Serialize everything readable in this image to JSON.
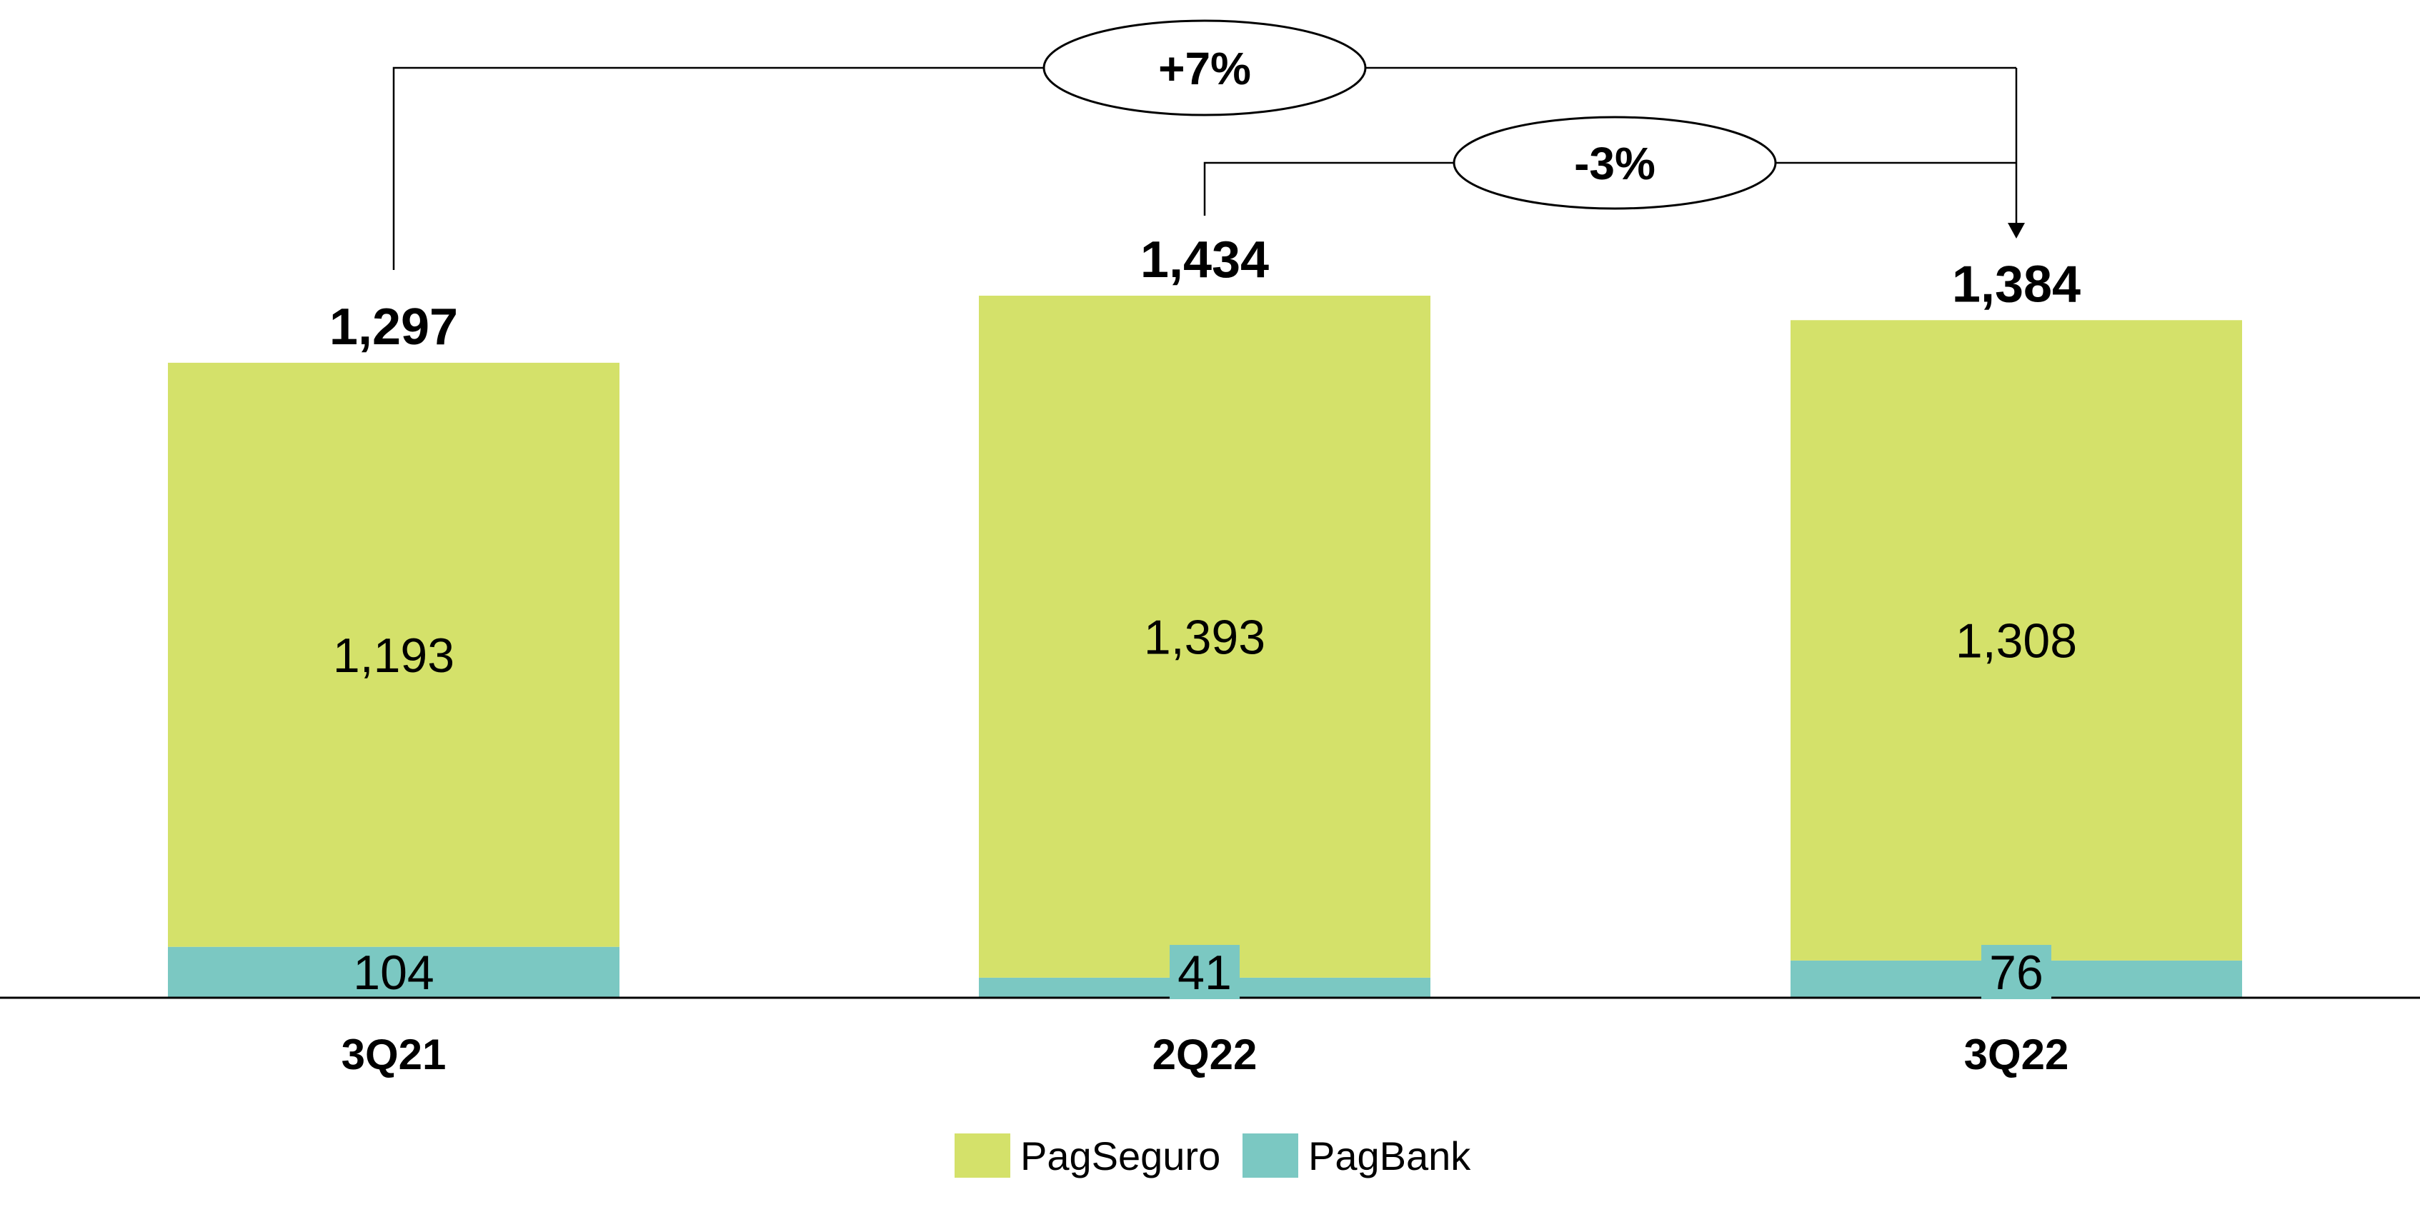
{
  "chart_data": {
    "type": "bar",
    "stacked": true,
    "categories": [
      "3Q21",
      "2Q22",
      "3Q22"
    ],
    "series": [
      {
        "name": "PagBank",
        "values": [
          104,
          41,
          76
        ],
        "color": "#7bc8c2"
      },
      {
        "name": "PagSeguro",
        "values": [
          1193,
          1393,
          1308
        ],
        "color": "#d4e16a"
      }
    ],
    "totals": [
      "1,297",
      "1,434",
      "1,384"
    ],
    "segment_labels": {
      "PagBank": [
        "104",
        "41",
        "76"
      ],
      "PagSeguro": [
        "1,193",
        "1,393",
        "1,308"
      ]
    },
    "ylim": [
      0,
      1434
    ],
    "grid": false,
    "legend": {
      "position": "bottom",
      "items": [
        "PagSeguro",
        "PagBank"
      ]
    },
    "annotations": [
      {
        "text": "+7%",
        "from": "3Q21",
        "to": "3Q22"
      },
      {
        "text": "-3%",
        "from": "2Q22",
        "to": "3Q22"
      }
    ]
  }
}
